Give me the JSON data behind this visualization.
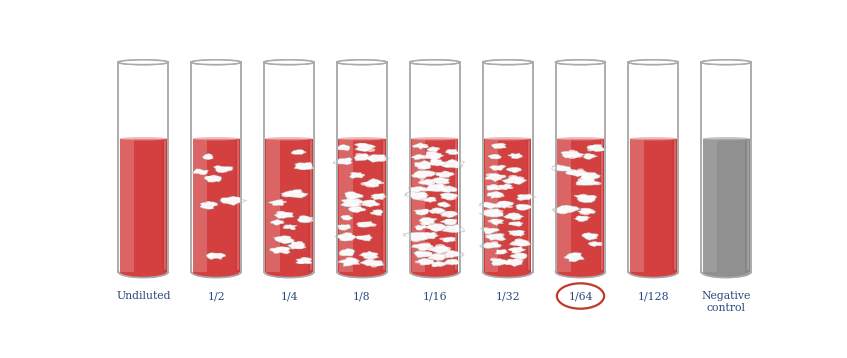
{
  "tubes": [
    {
      "label": "Undiluted",
      "agglutinates": 0,
      "is_neg": false
    },
    {
      "label": "1/2",
      "agglutinates": 7,
      "is_neg": false
    },
    {
      "label": "1/4",
      "agglutinates": 12,
      "is_neg": false
    },
    {
      "label": "1/8",
      "agglutinates": 22,
      "is_neg": false
    },
    {
      "label": "1/16",
      "agglutinates": 38,
      "is_neg": false
    },
    {
      "label": "1/32",
      "agglutinates": 28,
      "is_neg": false
    },
    {
      "label": "1/64",
      "agglutinates": 14,
      "is_neg": false,
      "circled": true
    },
    {
      "label": "1/128",
      "agglutinates": 0,
      "is_neg": false
    },
    {
      "label": "Negative\ncontrol",
      "agglutinates": 0,
      "is_neg": true
    }
  ],
  "background": "#ffffff",
  "red_fill": "#d44040",
  "red_light": "#e8a0a0",
  "red_dark": "#b83030",
  "gray_fill": "#909090",
  "gray_light": "#b0b0b0",
  "gray_dark": "#707070",
  "tube_edge": "#aaaaaa",
  "label_color": "#2c4a7c",
  "circle_color": "#c0392b",
  "blob_size_min": 0.01,
  "blob_size_max": 0.018,
  "blob_pts": 12
}
